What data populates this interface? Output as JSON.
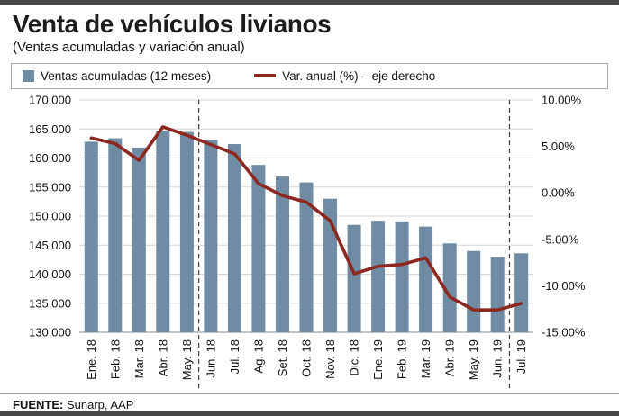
{
  "header": {
    "title": "Venta de vehículos livianos",
    "subtitle": "(Ventas acumuladas y variación anual)"
  },
  "legend": {
    "bars_label": "Ventas acumuladas (12 meses)",
    "line_label": "Var. anual (%) – eje derecho"
  },
  "footer": {
    "source_label": "FUENTE:",
    "source_value": " Sunarp, AAP"
  },
  "colors": {
    "bar": "#6f8ca4",
    "line": "#8c2820",
    "grid": "#d4d4d4",
    "grid_bottom": "#8a8a8a",
    "dashed": "#3a3a3a",
    "axis_text": "#111111",
    "band": "#474747"
  },
  "chart_data": {
    "type": "bar",
    "subtype": "bar+line dual axis",
    "title": "Venta de vehículos livianos",
    "subtitle": "(Ventas acumuladas y variación anual)",
    "categories": [
      "Ene. 18",
      "Feb. 18",
      "Mar. 18",
      "Abr. 18",
      "May. 18",
      "Jun. 18",
      "Jul. 18",
      "Ag. 18",
      "Set. 18",
      "Oct. 18",
      "Nov. 18",
      "Dic. 18",
      "Ene. 19",
      "Feb. 19",
      "Mar. 19",
      "Abr. 19",
      "May. 19",
      "Jun. 19",
      "Jul. 19"
    ],
    "series": [
      {
        "name": "Ventas acumuladas (12 meses)",
        "type": "bar",
        "axis": "left",
        "values": [
          162800,
          163400,
          161800,
          164700,
          164500,
          163100,
          162400,
          158800,
          156800,
          155800,
          153000,
          148500,
          149200,
          149100,
          148200,
          145300,
          144000,
          143000,
          143600
        ]
      },
      {
        "name": "Var. anual (%) – eje derecho",
        "type": "line",
        "axis": "right",
        "values": [
          5.9,
          5.3,
          3.5,
          7.1,
          6.2,
          5.2,
          4.2,
          1.0,
          -0.3,
          -1.0,
          -3.0,
          -8.7,
          -7.9,
          -7.7,
          -7.0,
          -11.2,
          -12.6,
          -12.6,
          -11.9
        ]
      }
    ],
    "left_axis": {
      "min": 130000,
      "max": 170000,
      "tick_step": 5000,
      "tick_labels": [
        "170,000",
        "165,000",
        "160,000",
        "155,000",
        "150,000",
        "145,000",
        "140,000",
        "135,000",
        "130,000"
      ]
    },
    "right_axis": {
      "min": -15,
      "max": 10,
      "tick_step": 5,
      "tick_labels": [
        "10.00%",
        "5.00%",
        "0.00%",
        "-5.00%",
        "-10.00%",
        "-15.00%"
      ]
    },
    "dashed_vline_after_index": [
      4,
      17
    ],
    "dashed_vlines_between": [
      [
        "May. 18",
        "Jun. 18"
      ],
      [
        "Jun. 19",
        "Jul. 19"
      ]
    ],
    "grid": true,
    "legend_position": "top"
  }
}
